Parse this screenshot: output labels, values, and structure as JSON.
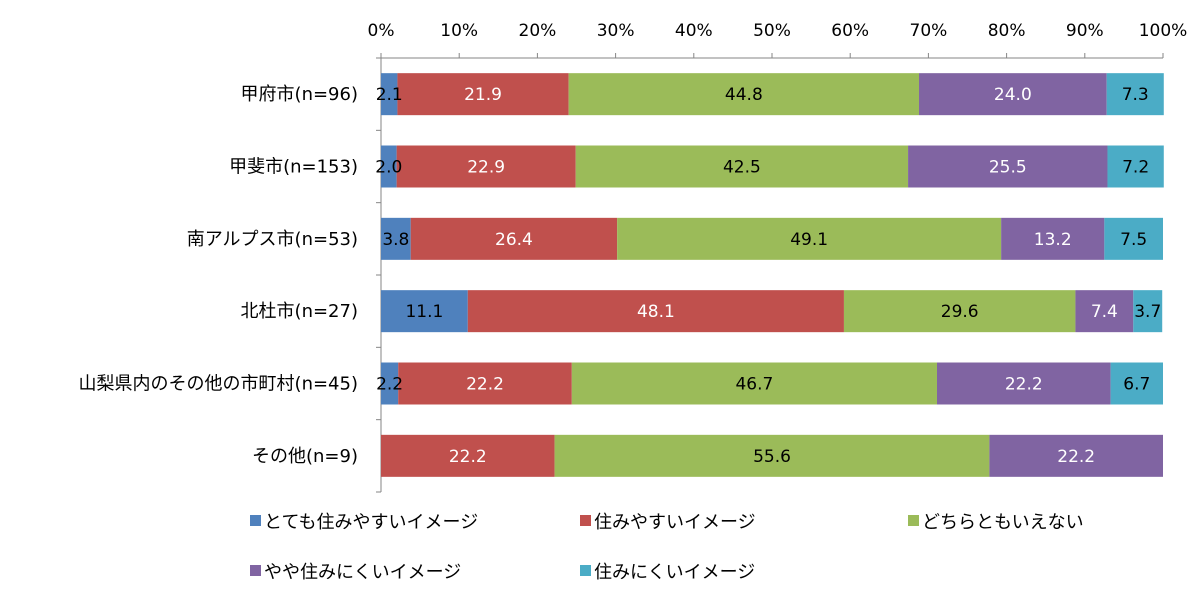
{
  "chart_data": {
    "type": "bar",
    "orientation": "horizontal",
    "stacked": "percent",
    "categories": [
      "甲府市(n=96)",
      "甲斐市(n=153)",
      "南アルプス市(n=53)",
      "北杜市(n=27)",
      "山梨県内のその他の市町村(n=45)",
      "その他(n=9)"
    ],
    "series": [
      {
        "name": "とても住みやすいイメージ",
        "color": "#4F81BD",
        "label_color": "#000000",
        "values": [
          2.1,
          2.0,
          3.8,
          11.1,
          2.2,
          null
        ]
      },
      {
        "name": "住みやすいイメージ",
        "color": "#C0504D",
        "label_color": "#ffffff",
        "values": [
          21.9,
          22.9,
          26.4,
          48.1,
          22.2,
          22.2
        ]
      },
      {
        "name": "どちらともいえない",
        "color": "#9BBB59",
        "label_color": "#000000",
        "values": [
          44.8,
          42.5,
          49.1,
          29.6,
          46.7,
          55.6
        ]
      },
      {
        "name": "やや住みにくいイメージ",
        "color": "#8064A2",
        "label_color": "#ffffff",
        "values": [
          24.0,
          25.5,
          13.2,
          7.4,
          22.2,
          22.2
        ]
      },
      {
        "name": "住みにくいイメージ",
        "color": "#4BACC6",
        "label_color": "#000000",
        "values": [
          7.3,
          7.2,
          7.5,
          3.7,
          6.7,
          null
        ]
      }
    ],
    "xaxis": {
      "ticks": [
        "0%",
        "10%",
        "20%",
        "30%",
        "40%",
        "50%",
        "60%",
        "70%",
        "80%",
        "90%",
        "100%"
      ],
      "range": [
        0,
        100
      ],
      "position": "top"
    },
    "legend_position": "bottom",
    "grid": false
  }
}
